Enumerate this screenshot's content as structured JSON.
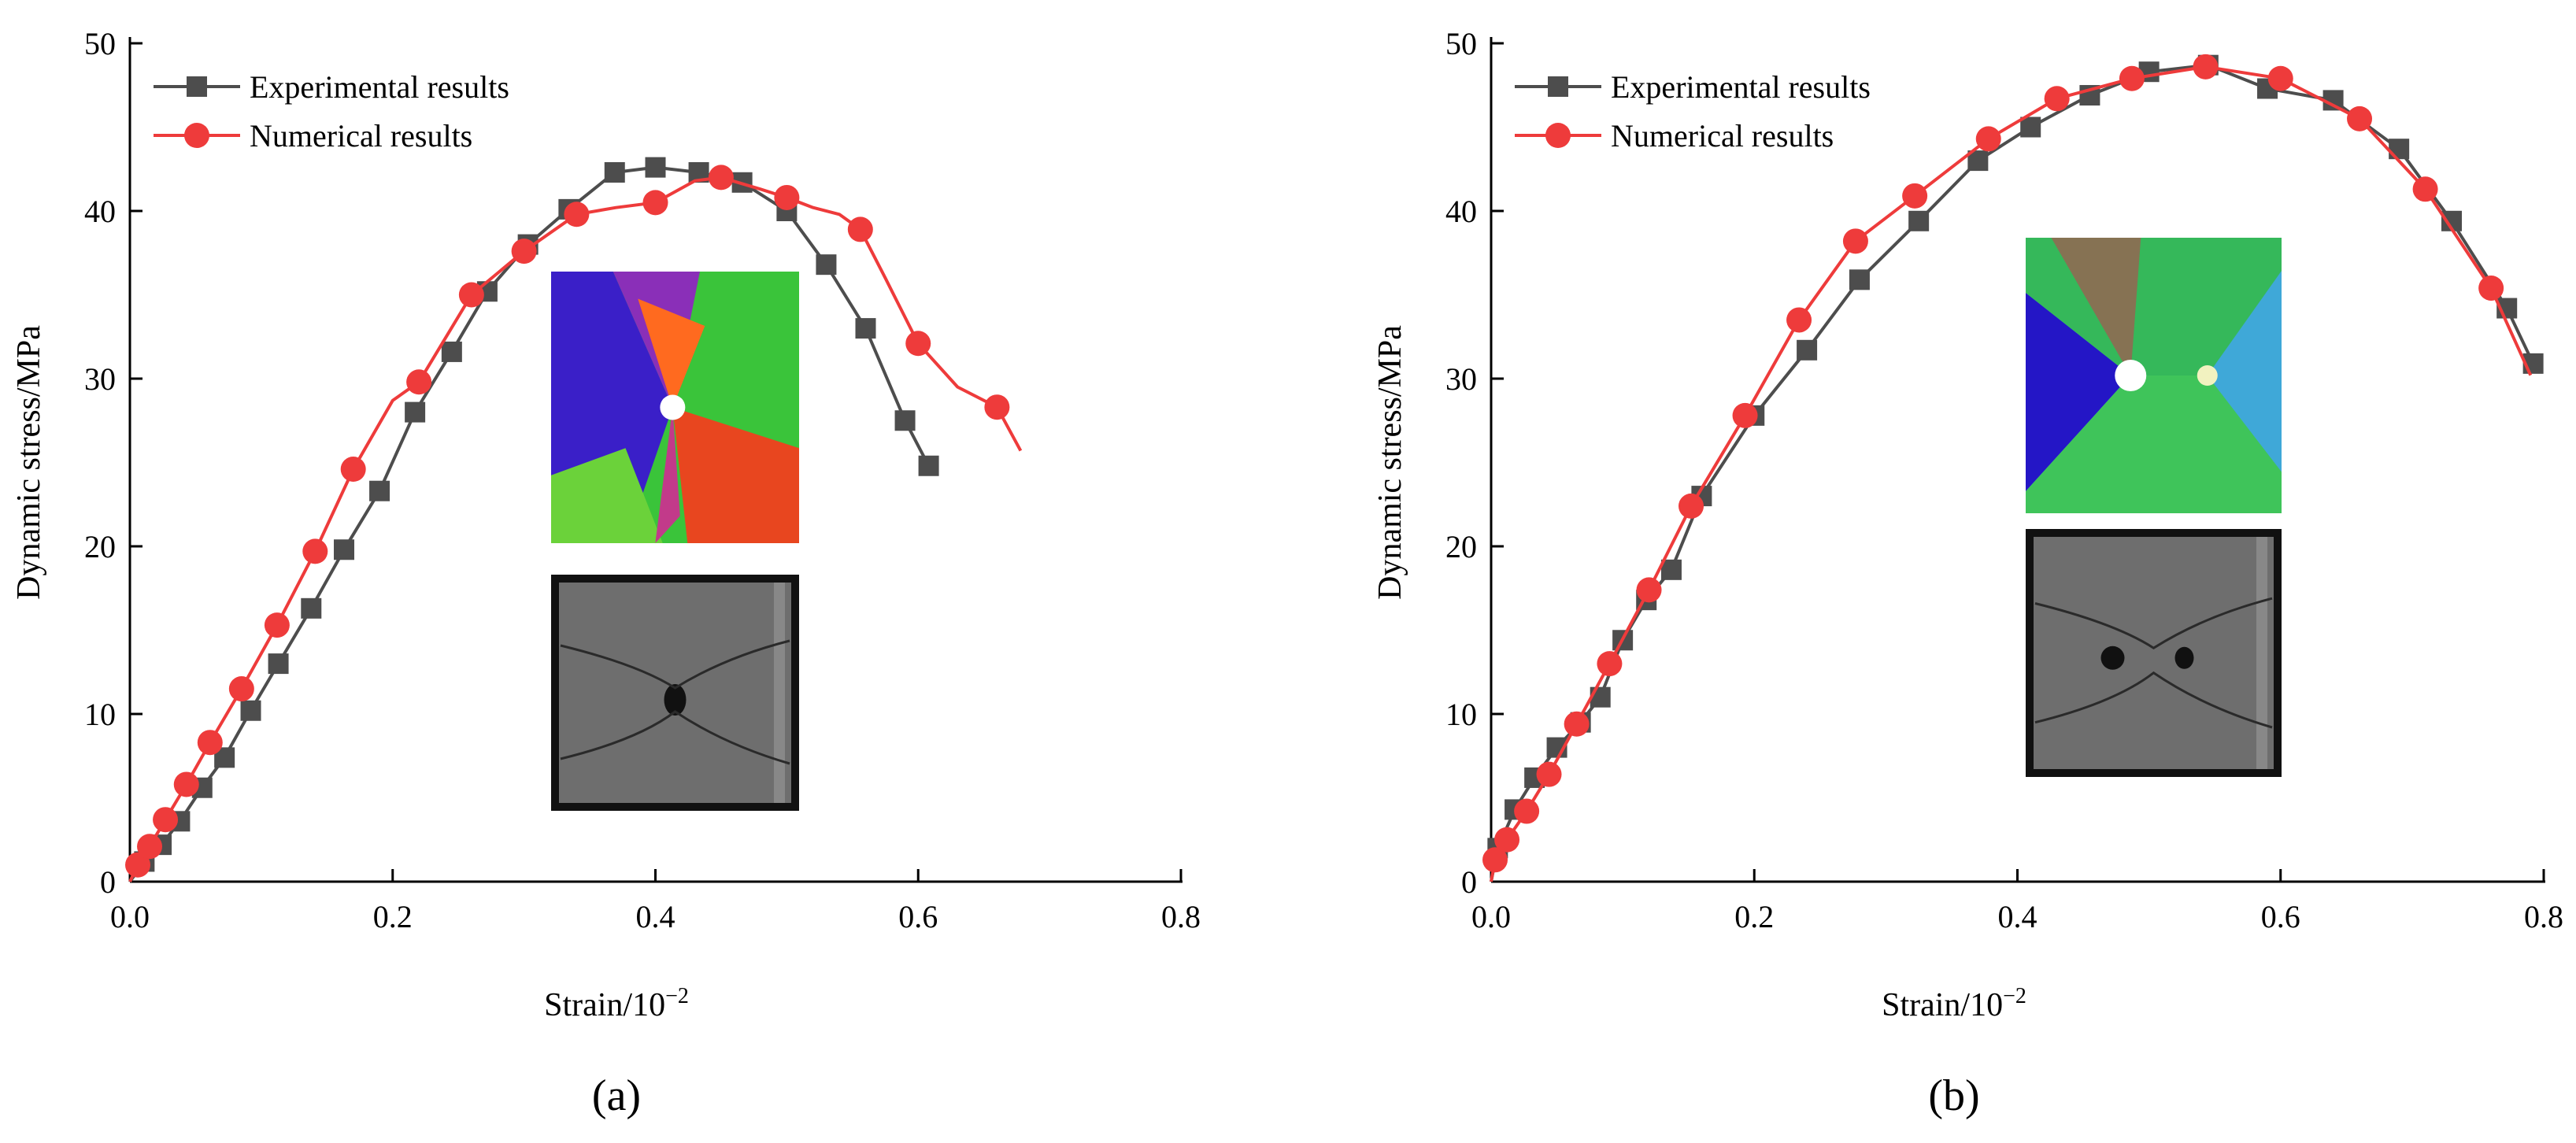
{
  "chart_data": [
    {
      "type": "line",
      "panel_label": "(a)",
      "xlabel": "Strain/10",
      "xlabel_sup": "−2",
      "ylabel": "Dynamic stress/MPa",
      "xlim": [
        0,
        0.8
      ],
      "ylim": [
        0,
        50
      ],
      "xticks": [
        "0.0",
        "0.2",
        "0.4",
        "0.6",
        "0.8"
      ],
      "yticks": [
        "0",
        "10",
        "20",
        "30",
        "40",
        "50"
      ],
      "grid": false,
      "legend_position": "top-left",
      "series": [
        {
          "name": "Experimental results",
          "color": "#4d4d4d",
          "marker": "square",
          "x": [
            0,
            0.011,
            0.024,
            0.038,
            0.055,
            0.072,
            0.092,
            0.113,
            0.138,
            0.163,
            0.19,
            0.217,
            0.245,
            0.272,
            0.303,
            0.334,
            0.369,
            0.4,
            0.433,
            0.466,
            0.5,
            0.53,
            0.56,
            0.59,
            0.608
          ],
          "y": [
            0,
            1.2,
            2.2,
            3.6,
            5.6,
            7.4,
            10.2,
            13.0,
            16.3,
            19.8,
            23.3,
            28.0,
            31.6,
            35.2,
            38.0,
            40.1,
            42.3,
            42.6,
            42.3,
            41.7,
            40.0,
            36.8,
            33.0,
            27.5,
            24.8
          ],
          "marker_x": [
            0.011,
            0.024,
            0.038,
            0.055,
            0.072,
            0.092,
            0.113,
            0.138,
            0.163,
            0.19,
            0.217,
            0.245,
            0.272,
            0.303,
            0.334,
            0.369,
            0.4,
            0.433,
            0.466,
            0.5,
            0.53,
            0.56,
            0.59,
            0.608
          ]
        },
        {
          "name": "Numerical results",
          "color": "#ee3b3b",
          "marker": "circle",
          "x": [
            0,
            0.006,
            0.015,
            0.027,
            0.043,
            0.061,
            0.085,
            0.112,
            0.141,
            0.17,
            0.2,
            0.22,
            0.26,
            0.3,
            0.34,
            0.37,
            0.4,
            0.43,
            0.45,
            0.48,
            0.5,
            0.52,
            0.54,
            0.556,
            0.575,
            0.6,
            0.63,
            0.66,
            0.678
          ],
          "y": [
            0,
            1.0,
            2.1,
            3.7,
            5.8,
            8.3,
            11.5,
            15.3,
            19.7,
            24.6,
            28.7,
            29.8,
            35.0,
            37.6,
            39.8,
            40.2,
            40.5,
            41.8,
            42.0,
            41.3,
            40.8,
            40.2,
            39.8,
            38.9,
            36.0,
            32.1,
            29.5,
            28.3,
            25.7
          ],
          "marker_x": [
            0.006,
            0.015,
            0.027,
            0.043,
            0.061,
            0.085,
            0.112,
            0.141,
            0.17,
            0.22,
            0.26,
            0.3,
            0.34,
            0.4,
            0.45,
            0.5,
            0.556,
            0.6,
            0.66
          ]
        }
      ]
    },
    {
      "type": "line",
      "panel_label": "(b)",
      "xlabel": "Strain/10",
      "xlabel_sup": "−2",
      "ylabel": "Dynamic stress/MPa",
      "xlim": [
        0,
        0.8
      ],
      "ylim": [
        0,
        50
      ],
      "xticks": [
        "0.0",
        "0.2",
        "0.4",
        "0.6",
        "0.8"
      ],
      "yticks": [
        "0",
        "10",
        "20",
        "30",
        "40",
        "50"
      ],
      "grid": false,
      "legend_position": "top-left",
      "series": [
        {
          "name": "Experimental results",
          "color": "#4d4d4d",
          "marker": "square",
          "x": [
            0,
            0.005,
            0.018,
            0.033,
            0.05,
            0.068,
            0.083,
            0.1,
            0.118,
            0.137,
            0.16,
            0.2,
            0.24,
            0.28,
            0.325,
            0.37,
            0.41,
            0.455,
            0.5,
            0.545,
            0.59,
            0.64,
            0.69,
            0.73,
            0.772,
            0.792
          ],
          "y": [
            0,
            2.0,
            4.3,
            6.2,
            8.0,
            9.5,
            11.0,
            14.4,
            16.8,
            18.6,
            23.0,
            27.8,
            31.7,
            35.9,
            39.4,
            43.0,
            45.0,
            46.9,
            48.3,
            48.7,
            47.3,
            46.6,
            43.7,
            39.4,
            34.2,
            30.9
          ],
          "marker_x": [
            0.005,
            0.018,
            0.033,
            0.05,
            0.068,
            0.083,
            0.1,
            0.118,
            0.137,
            0.16,
            0.2,
            0.24,
            0.28,
            0.325,
            0.37,
            0.41,
            0.455,
            0.5,
            0.545,
            0.59,
            0.64,
            0.69,
            0.73,
            0.772,
            0.792
          ]
        },
        {
          "name": "Numerical results",
          "color": "#ee3b3b",
          "marker": "circle",
          "x": [
            0,
            0.003,
            0.012,
            0.027,
            0.044,
            0.065,
            0.09,
            0.12,
            0.152,
            0.193,
            0.234,
            0.277,
            0.322,
            0.378,
            0.43,
            0.487,
            0.543,
            0.6,
            0.66,
            0.71,
            0.76,
            0.79
          ],
          "y": [
            0,
            1.3,
            2.5,
            4.2,
            6.4,
            9.4,
            13.0,
            17.4,
            22.4,
            27.8,
            33.5,
            38.2,
            40.9,
            44.3,
            46.7,
            47.9,
            48.6,
            47.9,
            45.5,
            41.3,
            35.4,
            30.2
          ],
          "marker_x": [
            0.003,
            0.012,
            0.027,
            0.044,
            0.065,
            0.09,
            0.12,
            0.152,
            0.193,
            0.234,
            0.277,
            0.322,
            0.378,
            0.43,
            0.487,
            0.543,
            0.6,
            0.66,
            0.71,
            0.76
          ]
        }
      ]
    }
  ]
}
